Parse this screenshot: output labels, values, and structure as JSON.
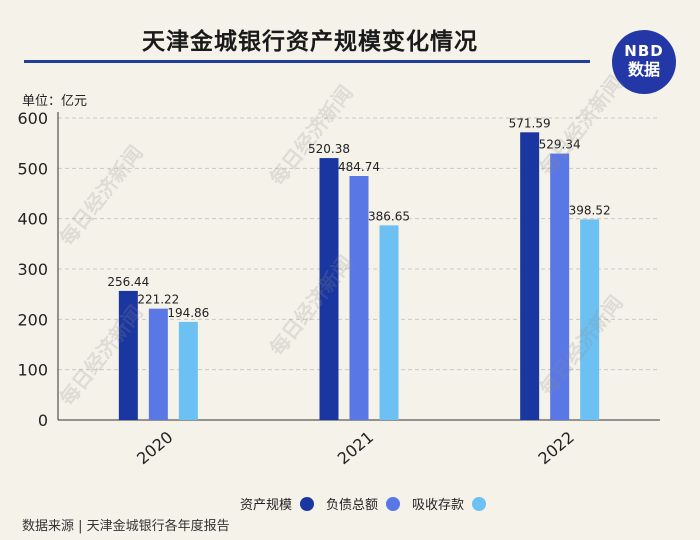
{
  "title": "天津金城银行资产规模变化情况",
  "logo": {
    "line1": "NBD",
    "line2": "数据"
  },
  "unit_label": "单位：亿元",
  "source_label": "数据来源 | 天津金城银行各年度报告",
  "watermark": "每日经济新闻",
  "colors": {
    "asset": "#1a36a0",
    "liability": "#5a77e6",
    "deposit": "#6cc0f2",
    "accent": "#1f3f9b"
  },
  "chart_data": {
    "type": "bar",
    "categories": [
      "2020",
      "2021",
      "2022"
    ],
    "series": [
      {
        "name": "资产规模",
        "values": [
          256.44,
          520.38,
          571.59
        ]
      },
      {
        "name": "负债总额",
        "values": [
          221.22,
          484.74,
          529.34
        ]
      },
      {
        "name": "吸收存款",
        "values": [
          194.86,
          386.65,
          398.52
        ]
      }
    ],
    "data_labels": [
      [
        "256.44",
        "520.38",
        "571.59"
      ],
      [
        "221.22",
        "484.74",
        "529.34"
      ],
      [
        "194.86",
        "386.65",
        "398.52"
      ]
    ],
    "yticks": [
      "0",
      "100",
      "200",
      "300",
      "400",
      "500",
      "600"
    ],
    "ylim": [
      0,
      600
    ],
    "grid": true,
    "legend_position": "bottom"
  }
}
